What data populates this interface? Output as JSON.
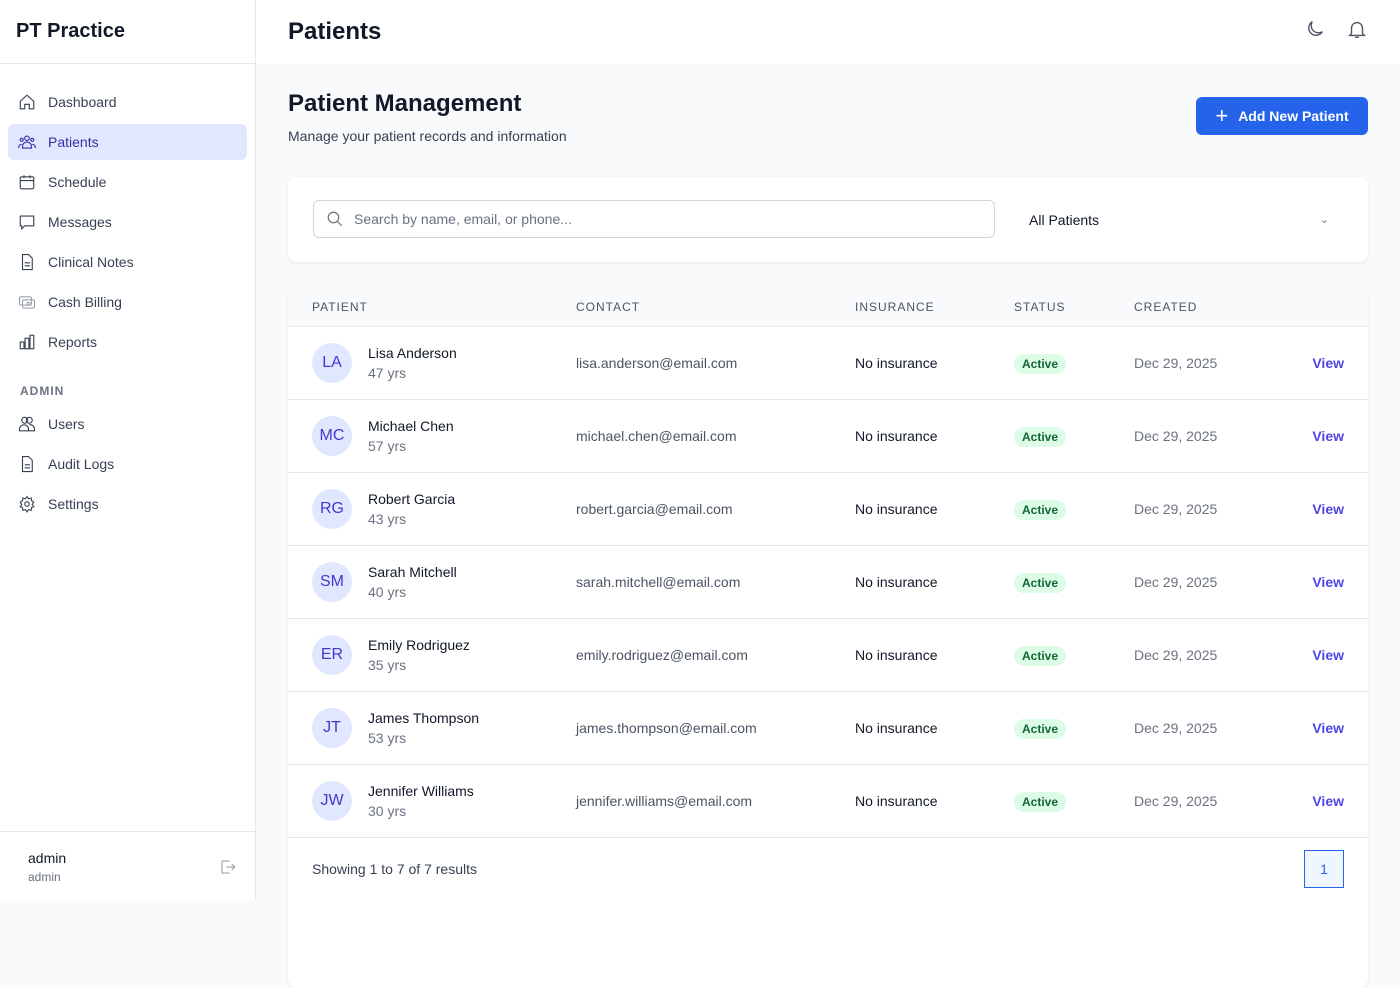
{
  "brand": "PT Practice",
  "nav": [
    {
      "label": "Dashboard"
    },
    {
      "label": "Patients"
    },
    {
      "label": "Schedule"
    },
    {
      "label": "Messages"
    },
    {
      "label": "Clinical Notes"
    },
    {
      "label": "Cash Billing"
    },
    {
      "label": "Reports"
    }
  ],
  "admin_section": "ADMIN",
  "admin_nav": [
    {
      "label": "Users"
    },
    {
      "label": "Audit Logs"
    },
    {
      "label": "Settings"
    }
  ],
  "user": {
    "name": "admin",
    "role": "admin"
  },
  "header": {
    "title": "Patients"
  },
  "page": {
    "title": "Patient Management",
    "subtitle": "Manage your patient records and information",
    "add_button": "Add New Patient"
  },
  "filter": {
    "search_placeholder": "Search by name, email, or phone...",
    "select_value": "All Patients"
  },
  "table": {
    "headers": [
      "PATIENT",
      "CONTACT",
      "INSURANCE",
      "STATUS",
      "CREATED"
    ],
    "rows": [
      {
        "initials": "LA",
        "name": "Lisa Anderson",
        "age": "47 yrs",
        "email": "lisa.anderson@email.com",
        "insurance": "No insurance",
        "status": "Active",
        "created": "Dec 29, 2025",
        "action": "View"
      },
      {
        "initials": "MC",
        "name": "Michael Chen",
        "age": "57 yrs",
        "email": "michael.chen@email.com",
        "insurance": "No insurance",
        "status": "Active",
        "created": "Dec 29, 2025",
        "action": "View"
      },
      {
        "initials": "RG",
        "name": "Robert Garcia",
        "age": "43 yrs",
        "email": "robert.garcia@email.com",
        "insurance": "No insurance",
        "status": "Active",
        "created": "Dec 29, 2025",
        "action": "View"
      },
      {
        "initials": "SM",
        "name": "Sarah Mitchell",
        "age": "40 yrs",
        "email": "sarah.mitchell@email.com",
        "insurance": "No insurance",
        "status": "Active",
        "created": "Dec 29, 2025",
        "action": "View"
      },
      {
        "initials": "ER",
        "name": "Emily Rodriguez",
        "age": "35 yrs",
        "email": "emily.rodriguez@email.com",
        "insurance": "No insurance",
        "status": "Active",
        "created": "Dec 29, 2025",
        "action": "View"
      },
      {
        "initials": "JT",
        "name": "James Thompson",
        "age": "53 yrs",
        "email": "james.thompson@email.com",
        "insurance": "No insurance",
        "status": "Active",
        "created": "Dec 29, 2025",
        "action": "View"
      },
      {
        "initials": "JW",
        "name": "Jennifer Williams",
        "age": "30 yrs",
        "email": "jennifer.williams@email.com",
        "insurance": "No insurance",
        "status": "Active",
        "created": "Dec 29, 2025",
        "action": "View"
      }
    ]
  },
  "footer": {
    "summary": "Showing 1 to 7 of 7 results",
    "current_page": "1"
  }
}
